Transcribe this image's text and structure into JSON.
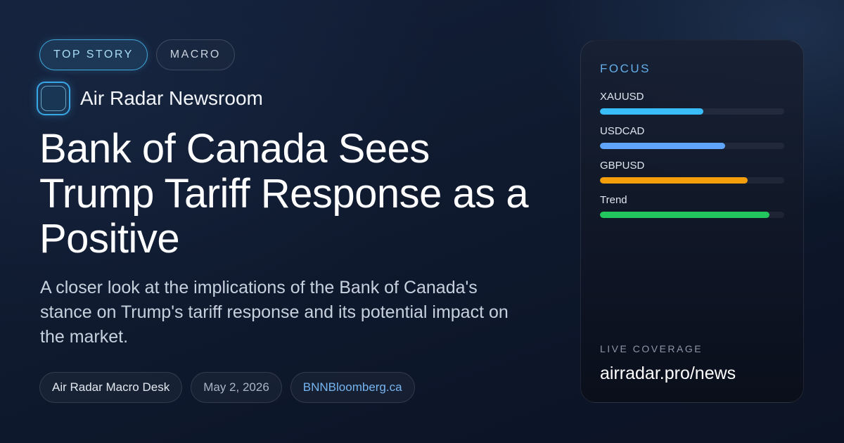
{
  "tags": [
    {
      "label": "TOP STORY"
    },
    {
      "label": "MACRO"
    }
  ],
  "brand": {
    "name": "Air Radar Newsroom"
  },
  "headline": "Bank of Canada Sees Trump Tariff  Response as a Positive",
  "subhead": "A closer look at the implications of the Bank of Canada's stance on Trump's tariff response and its potential impact on the market.",
  "meta": {
    "desk": "Air Radar Macro Desk",
    "date": "May 2, 2026",
    "source": "BNNBloomberg.ca"
  },
  "panel": {
    "title": "FOCUS",
    "bars": [
      {
        "label": "XAUUSD",
        "value": 0.56,
        "color": "#38bdf8"
      },
      {
        "label": "USDCAD",
        "value": 0.68,
        "color": "#60a5fa"
      },
      {
        "label": "GBPUSD",
        "value": 0.8,
        "color": "#f59e0b"
      },
      {
        "label": "Trend",
        "value": 0.92,
        "color": "#22c55e"
      }
    ],
    "footer_label": "LIVE COVERAGE",
    "footer_url": "airradar.pro/news"
  }
}
